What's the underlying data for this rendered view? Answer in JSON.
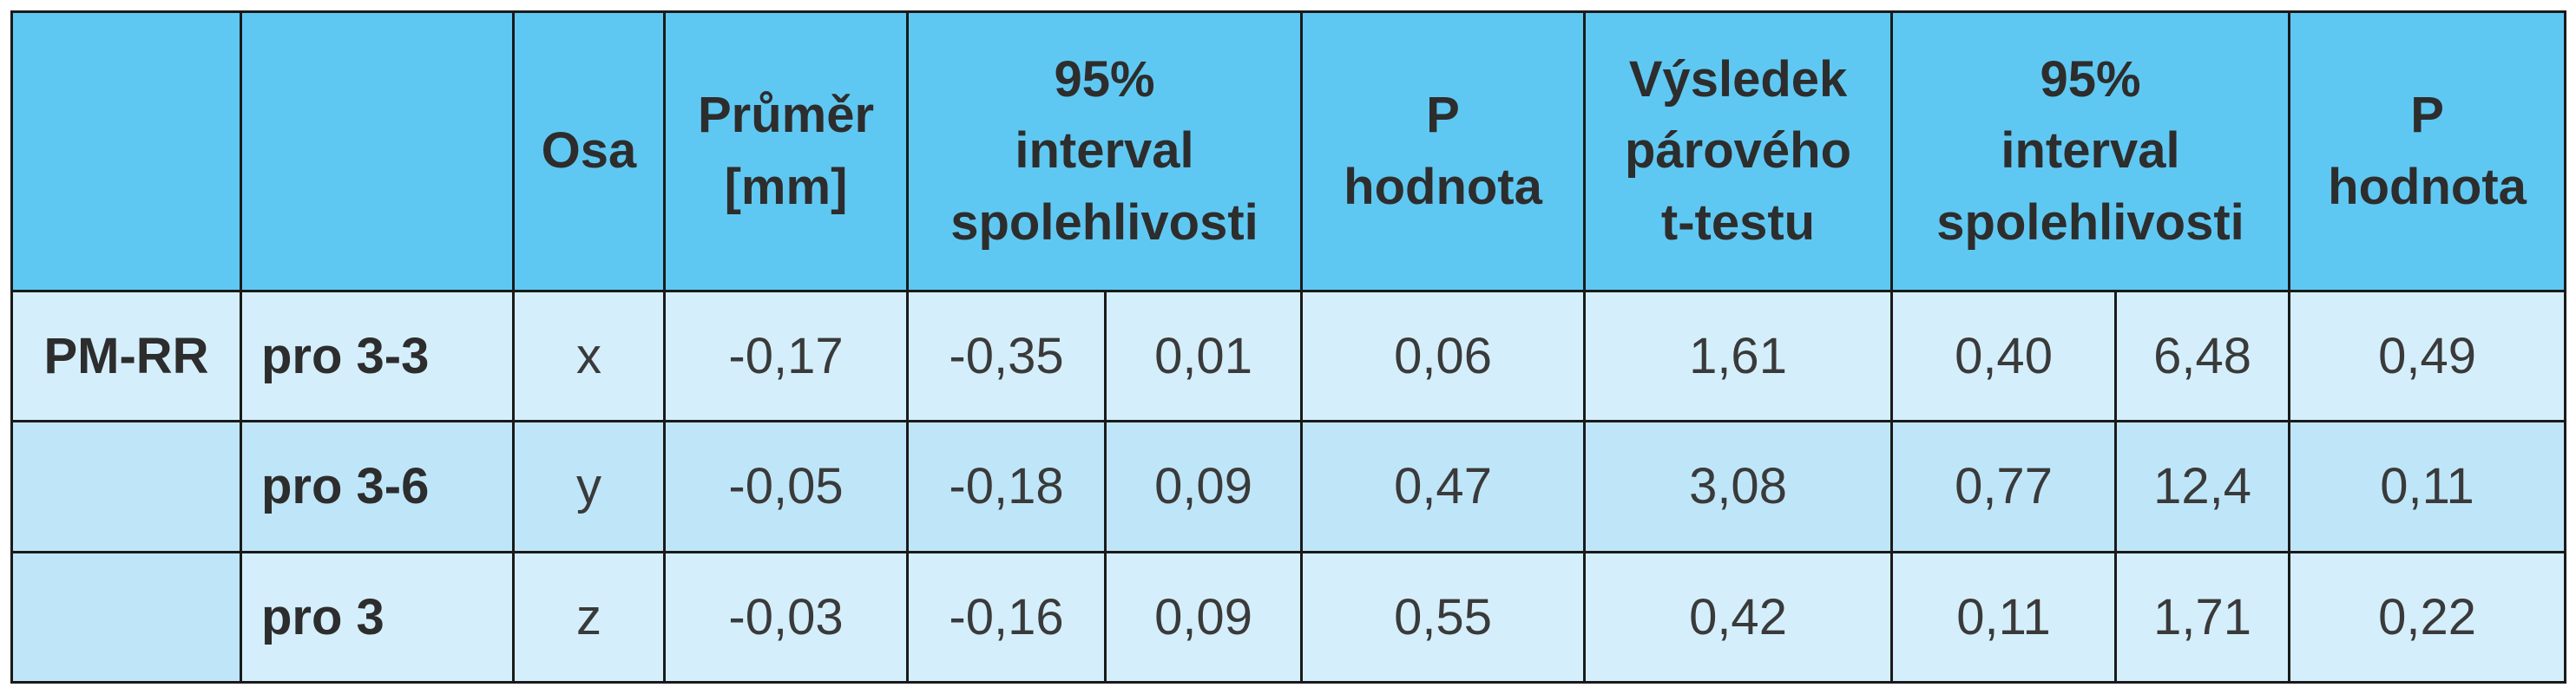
{
  "table": {
    "headers": {
      "col0": "",
      "col1": "",
      "osa": "Osa",
      "prumer": [
        "Průměr",
        "[mm]"
      ],
      "ci1": [
        "95%",
        "interval",
        "spolehlivosti"
      ],
      "p1": [
        "P",
        "hodnota"
      ],
      "vysledek": [
        "Výsledek",
        "párového",
        "t-testu"
      ],
      "ci2": [
        "95%",
        "interval",
        "spolehlivosti"
      ],
      "p2": [
        "P",
        "hodnota"
      ]
    },
    "rows": [
      {
        "group": "PM-RR",
        "label": "pro 3-3",
        "osa": "x",
        "prumer": "-0,17",
        "ci1_lo": "-0,35",
        "ci1_hi": "0,01",
        "p1": "0,06",
        "vysledek": "1,61",
        "ci2_lo": "0,40",
        "ci2_hi": "6,48",
        "p2": "0,49"
      },
      {
        "group": "",
        "label": "pro 3-6",
        "osa": "y",
        "prumer": "-0,05",
        "ci1_lo": "-0,18",
        "ci1_hi": "0,09",
        "p1": "0,47",
        "vysledek": "3,08",
        "ci2_lo": "0,77",
        "ci2_hi": "12,4",
        "p2": "0,11"
      },
      {
        "group": "",
        "label": "pro 3",
        "osa": "z",
        "prumer": "-0,03",
        "ci1_lo": "-0,16",
        "ci1_hi": "0,09",
        "p1": "0,55",
        "vysledek": "0,42",
        "ci2_lo": "0,11",
        "ci2_hi": "1,71",
        "p2": "0,22"
      }
    ]
  },
  "colors": {
    "header_bg": "#5fc8f2",
    "row_light": "#d4effb",
    "row_dark": "#bfe6f8",
    "border": "#1a1a1a"
  }
}
